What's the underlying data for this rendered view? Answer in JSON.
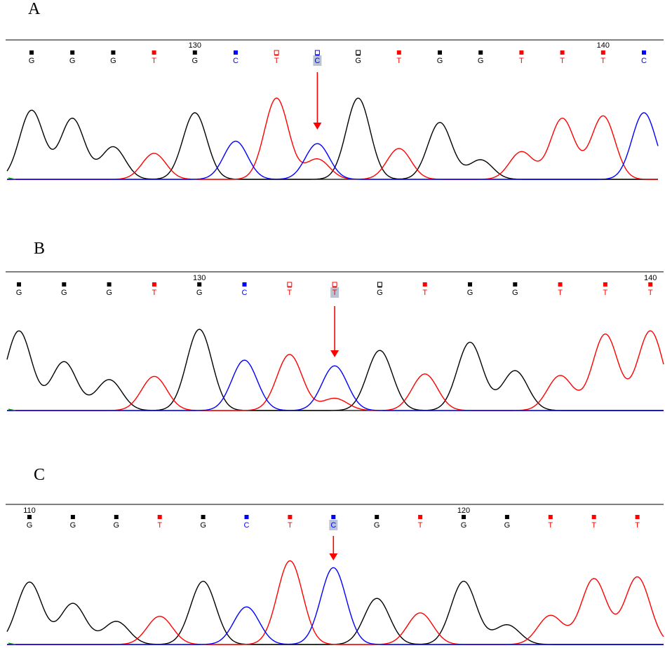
{
  "colors": {
    "G": "#000000",
    "T": "#ff0000",
    "C": "#0000ff",
    "A": "#00a000",
    "arrow": "#ff0000",
    "baseline": "#000000",
    "rule": "#555555",
    "highlight": "#b8c4d6"
  },
  "chart_data": [
    {
      "type": "line",
      "panel_label": "A",
      "bases": [
        "G",
        "G",
        "G",
        "T",
        "G",
        "C",
        "T",
        "C",
        "G",
        "T",
        "G",
        "G",
        "T",
        "T",
        "T",
        "C"
      ],
      "position_labels": [
        {
          "base_index": 4,
          "text": "130"
        },
        {
          "base_index": 14,
          "text": "140"
        }
      ],
      "marker_fill": [
        "filled",
        "filled",
        "filled",
        "filled",
        "filled",
        "filled",
        "open",
        "open",
        "open",
        "filled",
        "filled",
        "filled",
        "filled",
        "filled",
        "filled",
        "filled"
      ],
      "highlighted_base_index": 7,
      "arrow_base_index": 7,
      "series": [
        {
          "base": "G",
          "peaks": [
            [
              0,
              0.85
            ],
            [
              1,
              0.75
            ],
            [
              2,
              0.4
            ],
            [
              4,
              0.82
            ],
            [
              8,
              1.0
            ],
            [
              10,
              0.7
            ],
            [
              11,
              0.24
            ]
          ]
        },
        {
          "base": "T",
          "peaks": [
            [
              3,
              0.32
            ],
            [
              6,
              1.0
            ],
            [
              7,
              0.25
            ],
            [
              9,
              0.38
            ],
            [
              12,
              0.34
            ],
            [
              13,
              0.75
            ],
            [
              14,
              0.78
            ]
          ]
        },
        {
          "base": "C",
          "peaks": [
            [
              5,
              0.47
            ],
            [
              7,
              0.44
            ],
            [
              15,
              0.82
            ]
          ]
        }
      ]
    },
    {
      "type": "line",
      "panel_label": "B",
      "bases": [
        "G",
        "G",
        "G",
        "T",
        "G",
        "C",
        "T",
        "T",
        "G",
        "T",
        "G",
        "G",
        "T",
        "T",
        "T"
      ],
      "position_labels": [
        {
          "base_index": 4,
          "text": "130"
        },
        {
          "base_index": 14,
          "text": "140"
        }
      ],
      "marker_fill": [
        "filled",
        "filled",
        "filled",
        "filled",
        "filled",
        "filled",
        "open",
        "open",
        "open",
        "filled",
        "filled",
        "filled",
        "filled",
        "filled",
        "filled"
      ],
      "highlighted_base_index": 7,
      "arrow_base_index": 7,
      "series": [
        {
          "base": "G",
          "peaks": [
            [
              0,
              0.98
            ],
            [
              1,
              0.6
            ],
            [
              2,
              0.38
            ],
            [
              4,
              1.0
            ],
            [
              8,
              0.74
            ],
            [
              10,
              0.84
            ],
            [
              11,
              0.49
            ]
          ]
        },
        {
          "base": "T",
          "peaks": [
            [
              3,
              0.42
            ],
            [
              6,
              0.69
            ],
            [
              7,
              0.15
            ],
            [
              9,
              0.45
            ],
            [
              12,
              0.43
            ],
            [
              13,
              0.94
            ],
            [
              14,
              0.98
            ]
          ]
        },
        {
          "base": "C",
          "peaks": [
            [
              5,
              0.62
            ],
            [
              7,
              0.55
            ]
          ]
        }
      ]
    },
    {
      "type": "line",
      "panel_label": "C",
      "bases": [
        "G",
        "G",
        "G",
        "T",
        "G",
        "C",
        "T",
        "C",
        "G",
        "T",
        "G",
        "G",
        "T",
        "T",
        "T"
      ],
      "position_labels": [
        {
          "base_index": 0,
          "text": "110"
        },
        {
          "base_index": 10,
          "text": "120"
        }
      ],
      "marker_fill": [
        "filled",
        "filled",
        "filled",
        "filled",
        "filled",
        "filled",
        "filled",
        "filled",
        "filled",
        "filled",
        "filled",
        "filled",
        "filled",
        "filled",
        "filled"
      ],
      "highlighted_base_index": 7,
      "arrow_base_index": 7,
      "series": [
        {
          "base": "G",
          "peaks": [
            [
              0,
              0.73
            ],
            [
              1,
              0.48
            ],
            [
              2,
              0.27
            ],
            [
              4,
              0.74
            ],
            [
              8,
              0.54
            ],
            [
              10,
              0.74
            ],
            [
              11,
              0.23
            ]
          ]
        },
        {
          "base": "T",
          "peaks": [
            [
              3,
              0.33
            ],
            [
              6,
              0.98
            ],
            [
              9,
              0.37
            ],
            [
              12,
              0.34
            ],
            [
              13,
              0.77
            ],
            [
              14,
              0.79
            ]
          ]
        },
        {
          "base": "C",
          "peaks": [
            [
              5,
              0.44
            ],
            [
              7,
              0.9
            ]
          ]
        }
      ]
    }
  ]
}
